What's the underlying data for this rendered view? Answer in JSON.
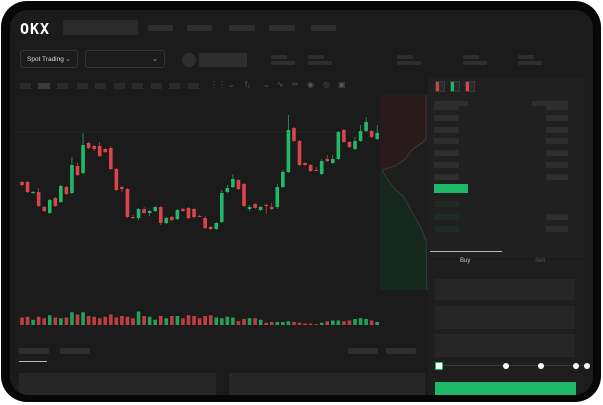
{
  "brand": {
    "logo": "OKX"
  },
  "header": {
    "market_selector": {
      "label": "Spot Trading",
      "icon": "chevron-down-icon"
    },
    "pair_selector": {
      "icon": "chevron-down-icon"
    }
  },
  "toolbar": {
    "icons": [
      "candle-type-icon",
      "chevron-down-icon",
      "indicator-icon",
      "chevron-down-icon",
      "line-tool-icon",
      "ruler-icon",
      "camera-icon",
      "settings-icon",
      "fullscreen-icon"
    ]
  },
  "orderbook": {
    "view_icons": [
      "orderbook-both-icon",
      "orderbook-bids-icon",
      "orderbook-asks-icon"
    ]
  },
  "trade": {
    "tabs": [
      {
        "label": "Buy",
        "active": true
      },
      {
        "label": "Sell",
        "active": false
      }
    ],
    "slider_value_percent": 0,
    "slider_stops": [
      0,
      25,
      50,
      75,
      100
    ]
  },
  "colors": {
    "up": "#22b86a",
    "down": "#d9454a",
    "background": "#1b1b1b",
    "buy_button": "#1fb868"
  },
  "chart_data": {
    "type": "candlestick",
    "candles": [
      [
        118,
        119,
        114,
        115
      ],
      [
        118,
        119,
        107,
        108
      ],
      [
        107,
        109,
        106,
        108
      ],
      [
        108,
        112,
        93,
        94
      ],
      [
        93,
        94,
        88,
        89
      ],
      [
        87,
        101,
        86,
        100
      ],
      [
        102,
        103,
        93,
        94
      ],
      [
        98,
        115,
        97,
        114
      ],
      [
        113,
        114,
        105,
        106
      ],
      [
        107,
        143,
        106,
        135
      ],
      [
        134,
        137,
        124,
        125
      ],
      [
        127,
        167,
        126,
        155
      ],
      [
        157,
        158,
        151,
        152
      ],
      [
        154,
        155,
        149,
        151
      ],
      [
        154,
        158,
        143,
        144
      ],
      [
        151,
        152,
        147,
        148
      ],
      [
        152,
        154,
        130,
        131
      ],
      [
        131,
        132,
        109,
        110
      ],
      [
        113,
        114,
        108,
        111
      ],
      [
        111,
        112,
        82,
        83
      ],
      [
        83,
        85,
        81,
        82
      ],
      [
        82,
        92,
        80,
        91
      ],
      [
        91,
        93,
        86,
        87
      ],
      [
        87,
        90,
        84,
        89
      ],
      [
        89,
        94,
        88,
        93
      ],
      [
        93,
        94,
        75,
        77
      ],
      [
        77,
        83,
        76,
        82
      ],
      [
        83,
        84,
        79,
        80
      ],
      [
        81,
        91,
        80,
        90
      ],
      [
        91,
        92,
        88,
        89
      ],
      [
        92,
        93,
        81,
        82
      ],
      [
        91,
        92,
        82,
        83
      ],
      [
        84,
        85,
        83,
        83.5
      ],
      [
        82,
        84,
        71,
        72
      ],
      [
        73,
        74,
        70,
        71
      ],
      [
        71,
        78,
        70,
        77
      ],
      [
        78,
        110,
        77,
        107
      ],
      [
        108,
        115,
        107,
        112
      ],
      [
        113,
        126,
        112,
        121
      ],
      [
        120,
        121,
        110,
        111
      ],
      [
        116,
        117,
        93,
        94
      ],
      [
        91,
        95,
        89,
        93
      ],
      [
        96,
        97,
        91,
        92
      ],
      [
        90,
        94,
        89,
        93
      ],
      [
        95,
        96,
        86,
        94
      ],
      [
        93,
        97,
        90,
        91
      ],
      [
        93,
        116,
        91,
        113
      ],
      [
        113,
        130,
        112,
        128
      ],
      [
        128,
        185,
        127,
        170
      ],
      [
        172,
        173,
        158,
        159
      ],
      [
        159,
        160,
        134,
        135
      ],
      [
        137,
        138,
        134,
        135
      ],
      [
        135,
        136,
        128,
        129
      ],
      [
        130,
        133,
        129,
        129.5
      ],
      [
        126,
        141,
        125,
        139
      ],
      [
        141,
        145,
        138,
        139
      ],
      [
        137,
        145,
        136,
        141
      ],
      [
        141,
        169,
        140,
        168
      ],
      [
        170,
        171,
        157,
        158
      ],
      [
        158,
        159,
        152,
        153
      ],
      [
        151,
        163,
        150,
        159
      ],
      [
        159,
        175,
        158,
        169
      ],
      [
        169,
        183,
        168,
        178
      ],
      [
        169,
        170,
        162,
        163
      ],
      [
        161,
        175,
        160,
        167
      ]
    ],
    "volumes": [
      10,
      11,
      7,
      11,
      9,
      13,
      10,
      9,
      10,
      17,
      14,
      17,
      12,
      11,
      9,
      11,
      14,
      10,
      12,
      11,
      9,
      18,
      12,
      11,
      7,
      12,
      9,
      12,
      12,
      9,
      13,
      12,
      9,
      12,
      13,
      10,
      9,
      11,
      10,
      5,
      8,
      9,
      9,
      7,
      3,
      4,
      4,
      4,
      5,
      4,
      3,
      2,
      2,
      1,
      3,
      5,
      6,
      6,
      5,
      6,
      8,
      9,
      8,
      6,
      4
    ],
    "grid": false
  }
}
